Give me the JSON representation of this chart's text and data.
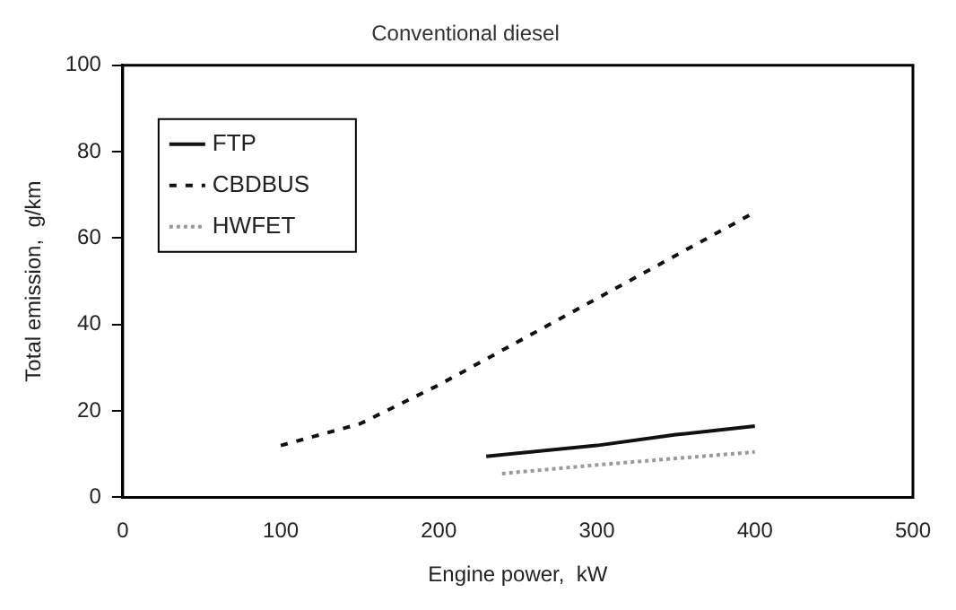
{
  "chart_data": {
    "type": "line",
    "title": "Conventional diesel",
    "xlabel": "Engine power,  kW",
    "ylabel": "Total emission,  g/km",
    "xlim": [
      0,
      500
    ],
    "xticks": [
      0,
      100,
      200,
      300,
      400,
      500
    ],
    "ylim": [
      0,
      100
    ],
    "yticks": [
      0,
      20,
      40,
      60,
      80,
      100
    ],
    "grid": false,
    "legend": "top left",
    "marker": "none",
    "series": [
      {
        "name": "FTP",
        "color": "#111111",
        "line_style": "solid",
        "x": [
          230,
          300,
          350,
          400
        ],
        "values": [
          9.5,
          12,
          14.5,
          16.5
        ]
      },
      {
        "name": "CBDBUS",
        "color": "#111111",
        "line_style": "dashed",
        "x": [
          100,
          150,
          200,
          250,
          300,
          350,
          400
        ],
        "values": [
          12,
          17,
          26,
          36,
          46,
          56,
          66
        ]
      },
      {
        "name": "HWFET",
        "color": "#999999",
        "line_style": "dotted",
        "x": [
          240,
          300,
          350,
          400
        ],
        "values": [
          5.5,
          7.5,
          9,
          10.5
        ]
      }
    ]
  }
}
